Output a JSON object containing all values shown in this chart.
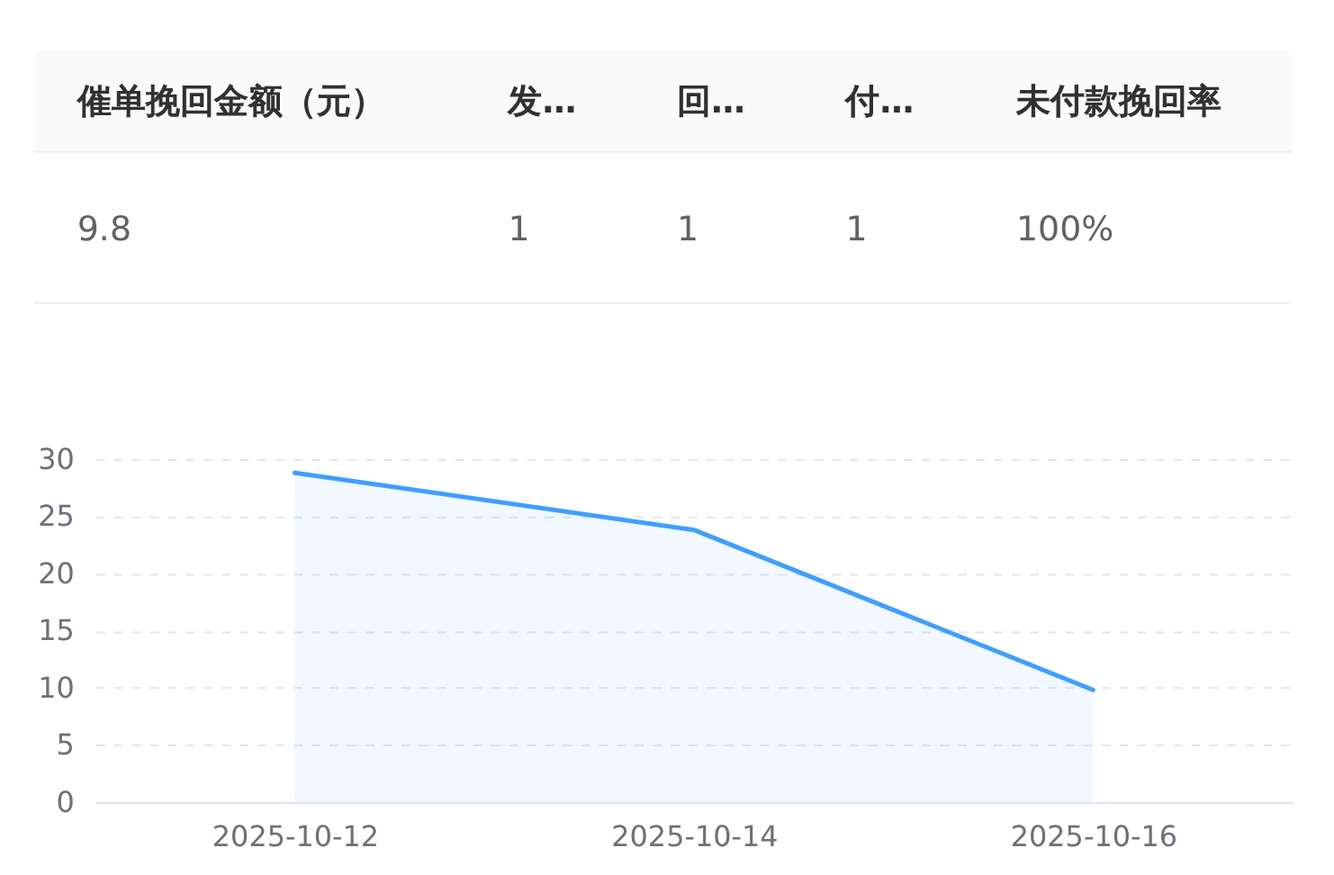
{
  "chart_data": [
    {
      "type": "other",
      "categories": [
        "催单挽回金额（元）",
        "发…",
        "回…",
        "付…",
        "未付款挽回率"
      ],
      "value_labels": [
        "9.8",
        "1",
        "1",
        "1",
        "100%"
      ]
    },
    {
      "type": "area",
      "categories": [
        "2025-10-12",
        "2025-10-14",
        "2025-10-16"
      ],
      "series": [
        {
          "color": "#409eff",
          "values": [
            28.8,
            23.8,
            9.8
          ]
        }
      ],
      "ylim": [
        0,
        30
      ],
      "yticks": [
        0,
        5,
        10,
        15,
        20,
        25,
        30
      ],
      "grid": "y",
      "legend": false
    }
  ]
}
